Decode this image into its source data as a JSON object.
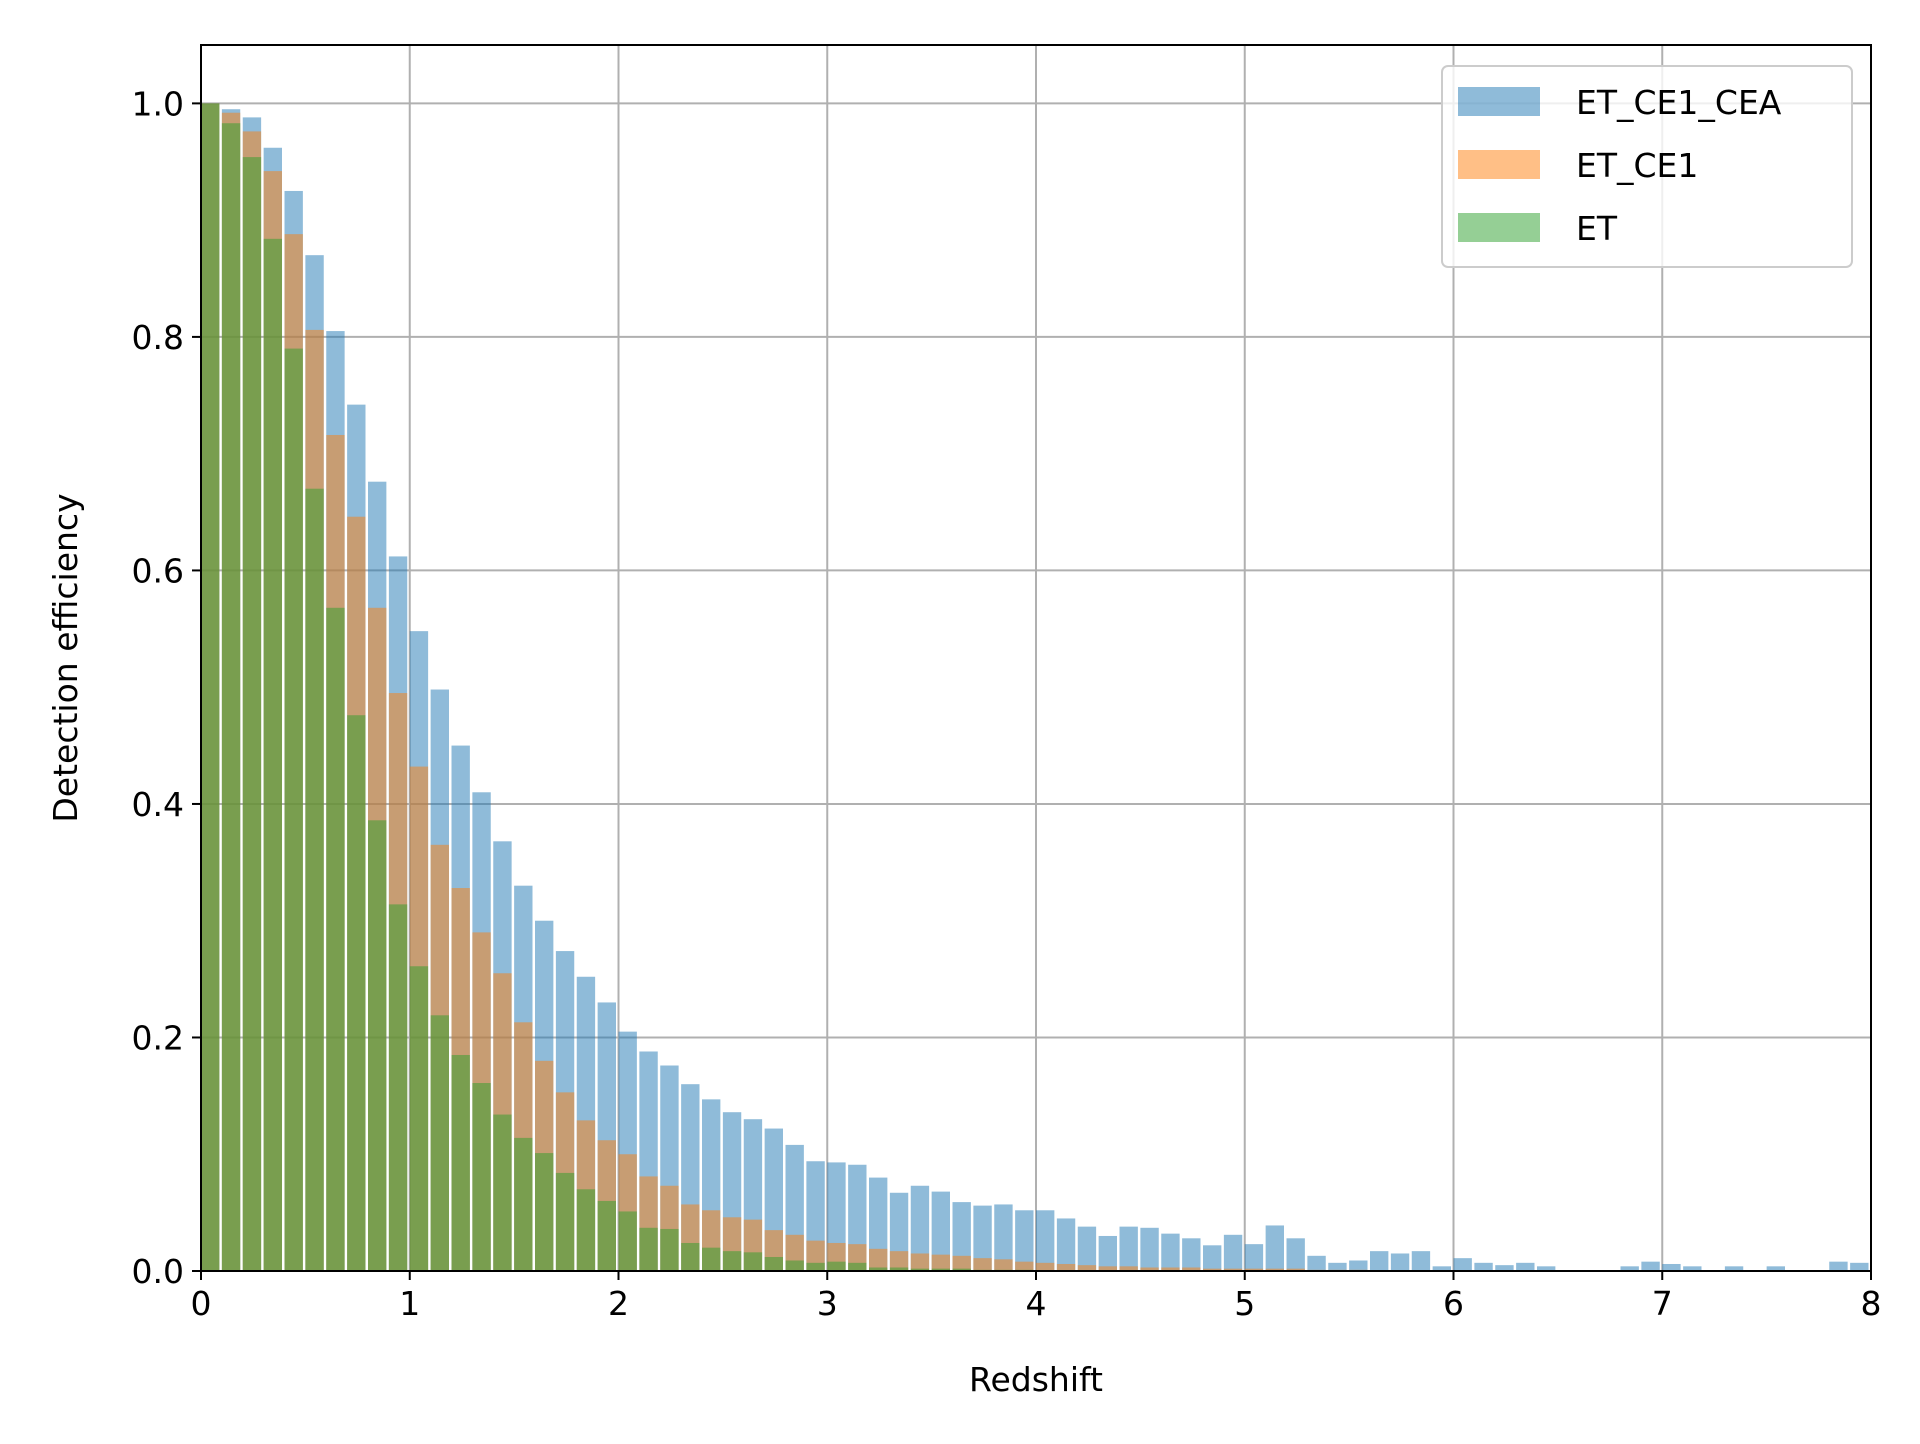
{
  "chart_data": {
    "type": "bar",
    "xlabel": "Redshift",
    "ylabel": "Detection efficiency",
    "xlim": [
      0,
      8
    ],
    "ylim": [
      0,
      1.05
    ],
    "xticks": [
      "0",
      "1",
      "2",
      "3",
      "4",
      "5",
      "6",
      "7",
      "8"
    ],
    "yticks": [
      "0.0",
      "0.2",
      "0.4",
      "0.6",
      "0.8",
      "1.0"
    ],
    "grid": true,
    "legend_position": "top-right",
    "bin_width": 0.1,
    "bin_starts": [
      0.0,
      0.1,
      0.2,
      0.3,
      0.4,
      0.5,
      0.6,
      0.7,
      0.8,
      0.9,
      1.0,
      1.1,
      1.2,
      1.3,
      1.4,
      1.5,
      1.6,
      1.7,
      1.8,
      1.9,
      2.0,
      2.1,
      2.2,
      2.3,
      2.4,
      2.5,
      2.6,
      2.7,
      2.8,
      2.9,
      3.0,
      3.1,
      3.2,
      3.3,
      3.4,
      3.5,
      3.6,
      3.7,
      3.8,
      3.9,
      4.0,
      4.1,
      4.2,
      4.3,
      4.4,
      4.5,
      4.6,
      4.7,
      4.8,
      4.9,
      5.0,
      5.1,
      5.2,
      5.3,
      5.4,
      5.5,
      5.6,
      5.7,
      5.8,
      5.9,
      6.0,
      6.1,
      6.2,
      6.3,
      6.4,
      6.5,
      6.6,
      6.7,
      6.8,
      6.9,
      7.0,
      7.1,
      7.2,
      7.3,
      7.4,
      7.5,
      7.6,
      7.7,
      7.8,
      7.9
    ],
    "series": [
      {
        "name": "ET_CE1_CEA",
        "color": "#1f77b4",
        "opacity": 0.5,
        "values": [
          1.0,
          0.995,
          0.988,
          0.962,
          0.925,
          0.87,
          0.805,
          0.742,
          0.676,
          0.612,
          0.548,
          0.498,
          0.45,
          0.41,
          0.368,
          0.33,
          0.3,
          0.274,
          0.252,
          0.23,
          0.205,
          0.188,
          0.176,
          0.16,
          0.147,
          0.136,
          0.13,
          0.122,
          0.108,
          0.094,
          0.093,
          0.091,
          0.08,
          0.067,
          0.073,
          0.068,
          0.059,
          0.056,
          0.057,
          0.052,
          0.052,
          0.045,
          0.038,
          0.03,
          0.038,
          0.037,
          0.032,
          0.028,
          0.022,
          0.031,
          0.023,
          0.039,
          0.028,
          0.013,
          0.007,
          0.009,
          0.017,
          0.015,
          0.017,
          0.004,
          0.011,
          0.007,
          0.005,
          0.007,
          0.004,
          0.0,
          0.0,
          0.0,
          0.004,
          0.008,
          0.006,
          0.004,
          0.0,
          0.004,
          0.0,
          0.004,
          0.0,
          0.0,
          0.008,
          0.007
        ]
      },
      {
        "name": "ET_CE1",
        "color": "#ff7f0e",
        "opacity": 0.5,
        "values": [
          1.0,
          0.992,
          0.976,
          0.942,
          0.888,
          0.806,
          0.716,
          0.646,
          0.568,
          0.495,
          0.432,
          0.365,
          0.328,
          0.29,
          0.255,
          0.213,
          0.18,
          0.153,
          0.129,
          0.112,
          0.1,
          0.081,
          0.073,
          0.057,
          0.052,
          0.046,
          0.044,
          0.035,
          0.031,
          0.026,
          0.024,
          0.023,
          0.019,
          0.017,
          0.015,
          0.014,
          0.013,
          0.011,
          0.01,
          0.008,
          0.007,
          0.006,
          0.005,
          0.004,
          0.004,
          0.003,
          0.003,
          0.003,
          0.002,
          0.002,
          0.002,
          0.002,
          0.002,
          0.001,
          0.001,
          0.001,
          0.0,
          0.0,
          0.0,
          0.0,
          0.0,
          0.0,
          0.0,
          0.0,
          0.0,
          0.0,
          0.0,
          0.0,
          0.0,
          0.0,
          0.0,
          0.0,
          0.0,
          0.0,
          0.0,
          0.0,
          0.0,
          0.0,
          0.0,
          0.0
        ]
      },
      {
        "name": "ET",
        "color": "#2ca02c",
        "opacity": 0.5,
        "values": [
          1.0,
          0.983,
          0.954,
          0.884,
          0.79,
          0.67,
          0.568,
          0.476,
          0.386,
          0.314,
          0.261,
          0.219,
          0.185,
          0.161,
          0.134,
          0.114,
          0.101,
          0.084,
          0.07,
          0.06,
          0.051,
          0.037,
          0.036,
          0.024,
          0.02,
          0.017,
          0.016,
          0.012,
          0.009,
          0.007,
          0.008,
          0.007,
          0.003,
          0.003,
          0.002,
          0.002,
          0.002,
          0.001,
          0.001,
          0.001,
          0.0,
          0.0,
          0.0,
          0.0,
          0.0,
          0.0,
          0.0,
          0.0,
          0.0,
          0.0,
          0.0,
          0.0,
          0.0,
          0.0,
          0.0,
          0.0,
          0.0,
          0.0,
          0.0,
          0.0,
          0.0,
          0.0,
          0.0,
          0.0,
          0.0,
          0.0,
          0.0,
          0.0,
          0.0,
          0.0,
          0.0,
          0.0,
          0.0,
          0.0,
          0.0,
          0.0,
          0.0,
          0.0,
          0.0,
          0.0
        ]
      }
    ]
  }
}
